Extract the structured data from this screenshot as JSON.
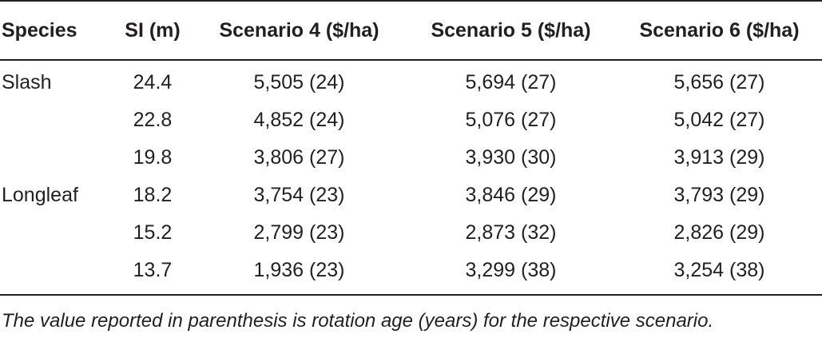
{
  "table": {
    "headers": [
      "Species",
      "SI (m)",
      "Scenario 4 ($/ha)",
      "Scenario 5 ($/ha)",
      "Scenario 6 ($/ha)"
    ],
    "rows": [
      [
        "Slash",
        "24.4",
        "5,505 (24)",
        "5,694 (27)",
        "5,656 (27)"
      ],
      [
        "",
        "22.8",
        "4,852 (24)",
        "5,076 (27)",
        "5,042 (27)"
      ],
      [
        "",
        "19.8",
        "3,806 (27)",
        "3,930 (30)",
        "3,913 (29)"
      ],
      [
        "Longleaf",
        "18.2",
        "3,754 (23)",
        "3,846 (29)",
        "3,793 (29)"
      ],
      [
        "",
        "15.2",
        "2,799 (23)",
        "2,873 (32)",
        "2,826 (29)"
      ],
      [
        "",
        "13.7",
        "1,936 (23)",
        "3,299 (38)",
        "3,254 (38)"
      ]
    ]
  },
  "footnote": "The value reported in parenthesis is rotation age (years) for the respective scenario."
}
